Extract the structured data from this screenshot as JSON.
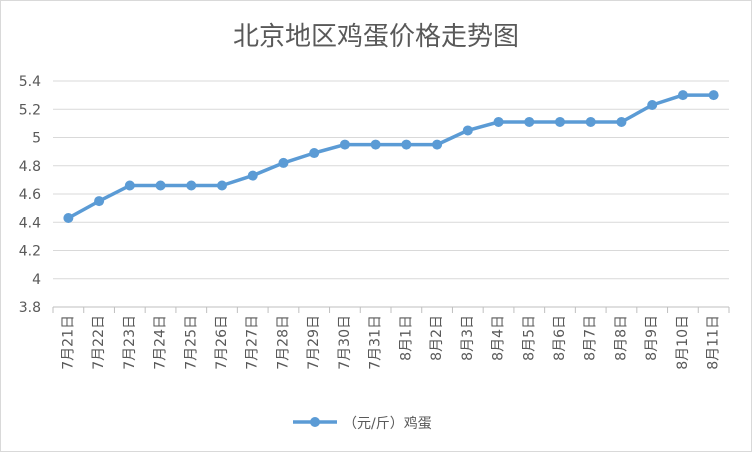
{
  "chart_data": {
    "type": "line",
    "title": "北京地区鸡蛋价格走势图",
    "categories": [
      "7月21日",
      "7月22日",
      "7月23日",
      "7月24日",
      "7月25日",
      "7月26日",
      "7月27日",
      "7月28日",
      "7月29日",
      "7月30日",
      "7月31日",
      "8月1日",
      "8月2日",
      "8月3日",
      "8月4日",
      "8月5日",
      "8月6日",
      "8月7日",
      "8月8日",
      "8月9日",
      "8月10日",
      "8月11日"
    ],
    "series": [
      {
        "name": "（元/斤）鸡蛋",
        "values": [
          4.43,
          4.55,
          4.66,
          4.66,
          4.66,
          4.66,
          4.73,
          4.82,
          4.89,
          4.95,
          4.95,
          4.95,
          4.95,
          5.05,
          5.11,
          5.11,
          5.11,
          5.11,
          5.11,
          5.23,
          5.3,
          5.3
        ],
        "color": "#5b9bd5"
      }
    ],
    "ylim": [
      3.8,
      5.4
    ],
    "yticks": [
      "3.8",
      "4",
      "4.2",
      "4.4",
      "4.6",
      "4.8",
      "5",
      "5.2",
      "5.4"
    ],
    "grid": true,
    "legend": "bottom"
  }
}
